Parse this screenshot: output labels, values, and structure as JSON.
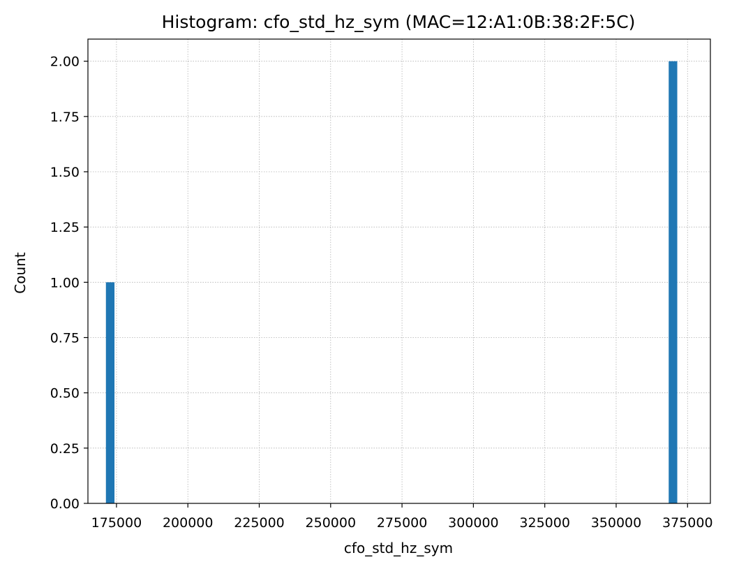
{
  "chart_data": {
    "type": "bar",
    "title": "Histogram: cfo_std_hz_sym (MAC=12:A1:0B:38:2F:5C)",
    "xlabel": "cfo_std_hz_sym",
    "ylabel": "Count",
    "xlim": [
      165000,
      383000
    ],
    "ylim": [
      0,
      2.1
    ],
    "x_ticks": [
      175000,
      200000,
      225000,
      250000,
      275000,
      300000,
      325000,
      350000,
      375000
    ],
    "x_tick_labels": [
      "175000",
      "200000",
      "225000",
      "250000",
      "275000",
      "300000",
      "325000",
      "350000",
      "375000"
    ],
    "y_ticks": [
      0,
      0.25,
      0.5,
      0.75,
      1.0,
      1.25,
      1.5,
      1.75,
      2.0
    ],
    "y_tick_labels": [
      "0.00",
      "0.25",
      "0.50",
      "0.75",
      "1.00",
      "1.25",
      "1.50",
      "1.75",
      "2.00"
    ],
    "grid": true,
    "bars": [
      {
        "bin_start": 171300,
        "bin_end": 174300,
        "count": 1
      },
      {
        "bin_start": 368400,
        "bin_end": 371400,
        "count": 2
      }
    ],
    "colors": {
      "bar": "#1f77b4",
      "grid": "#b0b0b0",
      "axis": "#000000"
    }
  }
}
